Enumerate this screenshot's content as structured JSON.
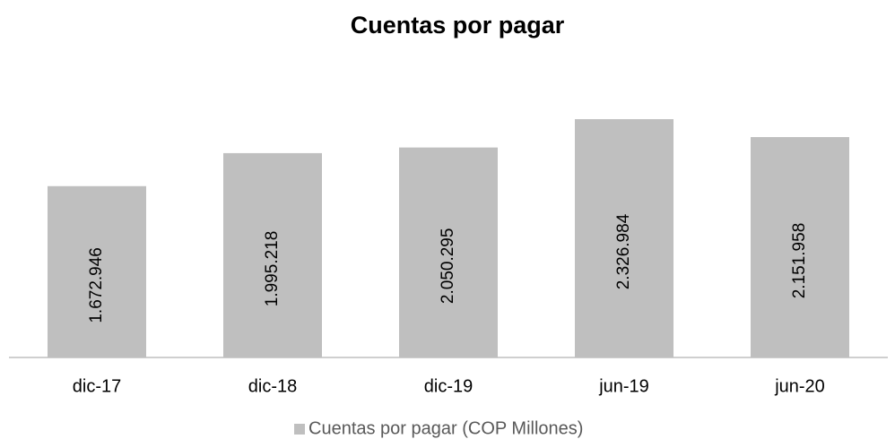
{
  "chart_data": {
    "type": "bar",
    "title": "Cuentas por pagar",
    "categories": [
      "dic-17",
      "dic-18",
      "dic-19",
      "jun-19",
      "jun-20"
    ],
    "series": [
      {
        "name": "Cuentas por pagar (COP Millones)",
        "color": "#bfbfbf",
        "values": [
          1672946,
          1995218,
          2050295,
          2326984,
          2151958
        ],
        "value_labels": [
          "1.672.946",
          "1.995.218",
          "2.050.295",
          "2.326.984",
          "2.151.958"
        ]
      }
    ],
    "legend": "bottom"
  }
}
